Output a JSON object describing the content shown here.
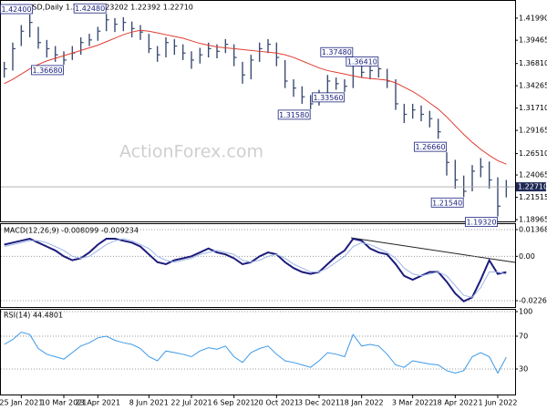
{
  "chart_data": [
    {
      "type": "ohlc",
      "title": "GBPUSD,Daily 1.22611 1.23202 1.22392 1.22710",
      "watermark": "ActionForex.com",
      "color": "#3b4d73",
      "ma_color": "#e03c31",
      "categories": [
        null,
        null,
        "25 Jan 2021",
        null,
        null,
        null,
        null,
        "10 Mar 2021",
        null,
        null,
        null,
        "23 Apr 2021",
        null,
        null,
        null,
        null,
        null,
        "8 Jun 2021",
        null,
        null,
        null,
        null,
        "22 Jul 2021",
        null,
        null,
        null,
        null,
        "6 Sep 2021",
        null,
        null,
        null,
        null,
        "20 Oct 2021",
        null,
        null,
        null,
        null,
        "3 Dec 2021",
        null,
        null,
        null,
        null,
        "18 Jan 2022",
        null,
        null,
        null,
        null,
        null,
        "3 Mar 2022",
        null,
        null,
        null,
        null,
        "18 Apr 2022",
        null,
        null,
        null,
        null,
        "1 Jun 2022",
        null
      ],
      "high": [
        1.37,
        1.392,
        1.412,
        1.424,
        1.41,
        1.395,
        1.388,
        1.382,
        1.388,
        1.398,
        1.402,
        1.41,
        1.4248,
        1.42,
        1.421,
        1.416,
        1.412,
        1.402,
        1.388,
        1.398,
        1.396,
        1.39,
        1.382,
        1.386,
        1.392,
        1.39,
        1.396,
        1.39,
        1.37,
        1.378,
        1.392,
        1.396,
        1.392,
        1.372,
        1.35,
        1.342,
        1.332,
        1.338,
        1.355,
        1.352,
        1.35,
        1.3748,
        1.37,
        1.366,
        1.3641,
        1.362,
        1.35,
        1.322,
        1.322,
        1.32,
        1.314,
        1.305,
        1.2666,
        1.258,
        1.24,
        1.252,
        1.26,
        1.256,
        1.238,
        1.235
      ],
      "low": [
        1.352,
        1.36,
        1.388,
        1.398,
        1.385,
        1.375,
        1.37,
        1.3668,
        1.372,
        1.378,
        1.388,
        1.394,
        1.405,
        1.404,
        1.405,
        1.398,
        1.395,
        1.38,
        1.37,
        1.375,
        1.378,
        1.372,
        1.362,
        1.368,
        1.375,
        1.374,
        1.38,
        1.365,
        1.345,
        1.35,
        1.37,
        1.38,
        1.365,
        1.34,
        1.33,
        1.322,
        1.3158,
        1.32,
        1.328,
        1.338,
        1.3356,
        1.34,
        1.352,
        1.35,
        1.352,
        1.34,
        1.315,
        1.3,
        1.305,
        1.302,
        1.295,
        1.282,
        1.24,
        1.225,
        1.2154,
        1.222,
        1.238,
        1.225,
        1.1932,
        1.215
      ],
      "close": [
        1.362,
        1.385,
        1.405,
        1.415,
        1.392,
        1.385,
        1.378,
        1.372,
        1.38,
        1.392,
        1.395,
        1.405,
        1.418,
        1.413,
        1.415,
        1.408,
        1.404,
        1.385,
        1.378,
        1.392,
        1.388,
        1.38,
        1.372,
        1.378,
        1.385,
        1.382,
        1.39,
        1.375,
        1.355,
        1.372,
        1.385,
        1.39,
        1.375,
        1.348,
        1.34,
        1.33,
        1.322,
        1.33,
        1.348,
        1.345,
        1.342,
        1.368,
        1.358,
        1.36,
        1.362,
        1.348,
        1.322,
        1.31,
        1.315,
        1.31,
        1.305,
        1.29,
        1.255,
        1.235,
        1.222,
        1.245,
        1.25,
        1.235,
        1.205,
        1.2271
      ],
      "ma_values": [
        1.345,
        1.35,
        1.356,
        1.362,
        1.367,
        1.371,
        1.374,
        1.377,
        1.38,
        1.383,
        1.386,
        1.389,
        1.393,
        1.397,
        1.401,
        1.404,
        1.406,
        1.405,
        1.403,
        1.401,
        1.399,
        1.397,
        1.394,
        1.391,
        1.389,
        1.387,
        1.386,
        1.385,
        1.384,
        1.383,
        1.382,
        1.381,
        1.38,
        1.378,
        1.375,
        1.371,
        1.367,
        1.363,
        1.36,
        1.358,
        1.356,
        1.354,
        1.352,
        1.351,
        1.35,
        1.349,
        1.346,
        1.341,
        1.336,
        1.33,
        1.323,
        1.316,
        1.307,
        1.297,
        1.287,
        1.278,
        1.27,
        1.263,
        1.257,
        1.253
      ],
      "annotations": [
        {
          "value": 1.424,
          "label": "1.42400"
        },
        {
          "value": 1.4248,
          "label": "1.42480"
        },
        {
          "value": 1.3668,
          "label": "1.36680"
        },
        {
          "value": 1.3748,
          "label": "1.37480"
        },
        {
          "value": 1.3641,
          "label": "1.36410"
        },
        {
          "value": 1.3356,
          "label": "1.33560"
        },
        {
          "value": 1.3158,
          "label": "1.31580"
        },
        {
          "value": 1.2666,
          "label": "1.26660"
        },
        {
          "value": 1.2154,
          "label": "1.21540"
        },
        {
          "value": 1.1932,
          "label": "1.19320"
        }
      ],
      "last_price": {
        "value": 1.2271,
        "label": "1.22710"
      },
      "ylim": [
        1.1876,
        1.4396
      ],
      "yticks": [
        {
          "value": 1.4199,
          "label": "1.41990"
        },
        1.39465,
        {
          "value": 1.3681,
          "label": "1.36810"
        },
        1.34265,
        {
          "value": 1.3171,
          "label": "1.31710"
        },
        1.29165,
        {
          "value": 1.2651,
          "label": "1.26510"
        },
        1.24065,
        1.21515,
        1.18965
      ],
      "grid": false
    },
    {
      "type": "line",
      "title": "MACD(12,26,9) -0.008099 -0.009234",
      "series": [
        {
          "color": "#1c1c7c",
          "values": [
            0.006,
            0.007,
            0.008,
            0.009,
            0.007,
            0.005,
            0.003,
            0.0,
            -0.002,
            -0.001,
            0.002,
            0.006,
            0.009,
            0.009,
            0.008,
            0.007,
            0.005,
            0.001,
            -0.003,
            -0.004,
            -0.002,
            -0.001,
            0.0,
            0.002,
            0.004,
            0.002,
            0.001,
            -0.001,
            -0.004,
            -0.003,
            0.0,
            0.002,
            0.001,
            -0.003,
            -0.006,
            -0.008,
            -0.009,
            -0.008,
            -0.004,
            0.0,
            0.003,
            0.009,
            0.008,
            0.004,
            0.002,
            0.001,
            -0.004,
            -0.01,
            -0.012,
            -0.01,
            -0.008,
            -0.008,
            -0.013,
            -0.019,
            -0.023,
            -0.021,
            -0.012,
            -0.002,
            -0.009,
            -0.008099
          ]
        },
        {
          "color": "#9fb6e6",
          "values": [
            0.005,
            0.006,
            0.007,
            0.008,
            0.008,
            0.007,
            0.005,
            0.003,
            0.0,
            -0.001,
            0.0,
            0.003,
            0.006,
            0.008,
            0.009,
            0.008,
            0.006,
            0.004,
            0.0,
            -0.002,
            -0.003,
            -0.002,
            -0.001,
            0.001,
            0.002,
            0.003,
            0.002,
            0.001,
            -0.002,
            -0.003,
            -0.002,
            0.0,
            0.001,
            -0.001,
            -0.004,
            -0.006,
            -0.008,
            -0.008,
            -0.006,
            -0.003,
            0.0,
            0.005,
            0.007,
            0.006,
            0.004,
            0.002,
            -0.001,
            -0.006,
            -0.009,
            -0.01,
            -0.009,
            -0.008,
            -0.01,
            -0.015,
            -0.02,
            -0.021,
            -0.016,
            -0.008,
            -0.008,
            -0.009234
          ]
        }
      ],
      "ylim": [
        -0.02596,
        0.01648
      ],
      "yticks": [
        0.013686,
        {
          "value": 0,
          "label": "0.00"
        },
        -0.022698
      ],
      "grid": true
    },
    {
      "type": "line",
      "title": "RSI(14) 44.4801",
      "series": [
        {
          "color": "#3c9ae8",
          "values": [
            60,
            66,
            75,
            72,
            55,
            48,
            45,
            42,
            50,
            58,
            62,
            68,
            70,
            65,
            62,
            60,
            55,
            45,
            40,
            52,
            50,
            48,
            45,
            52,
            56,
            54,
            58,
            45,
            38,
            50,
            55,
            58,
            48,
            40,
            38,
            35,
            32,
            40,
            50,
            48,
            45,
            72,
            58,
            60,
            58,
            48,
            35,
            32,
            40,
            38,
            36,
            35,
            28,
            25,
            28,
            45,
            50,
            45,
            25,
            44.4801
          ]
        }
      ],
      "ylim": [
        0,
        100
      ],
      "yticks": [
        100,
        70,
        30
      ],
      "grid": true
    }
  ]
}
